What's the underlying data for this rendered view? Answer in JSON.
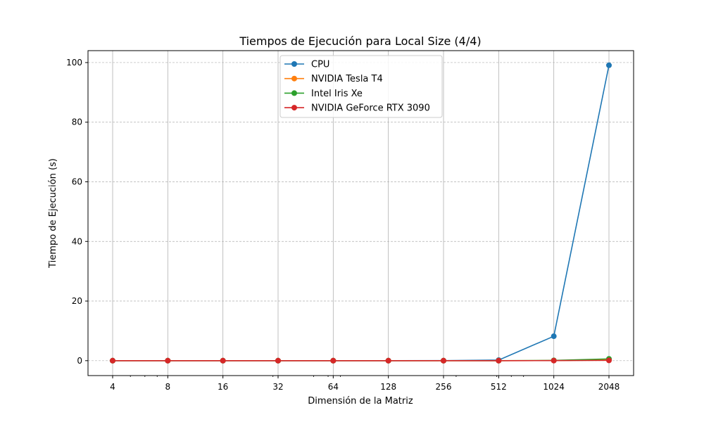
{
  "chart_data": {
    "type": "line",
    "title": "Tiempos de Ejecución para Local Size (4/4)",
    "xlabel": "Dimensión de la Matriz",
    "ylabel": "Tiempo de Ejecución (s)",
    "x_scale": "log2",
    "x": [
      4,
      8,
      16,
      32,
      64,
      128,
      256,
      512,
      1024,
      2048
    ],
    "x_tick_labels": [
      "4",
      "8",
      "16",
      "32",
      "64",
      "128",
      "256",
      "512",
      "1024",
      "2048"
    ],
    "y_ticks": [
      0,
      20,
      40,
      60,
      80,
      100
    ],
    "ylim": [
      -5,
      104
    ],
    "grid": true,
    "legend_position": "upper-center",
    "series": [
      {
        "name": "CPU",
        "color": "#1f77b4",
        "values": [
          0.0,
          0.0,
          0.0,
          0.0,
          0.0,
          0.0,
          0.02,
          0.2,
          8.2,
          99.1
        ]
      },
      {
        "name": "NVIDIA Tesla T4",
        "color": "#ff7f0e",
        "values": [
          0.0,
          0.0,
          0.0,
          0.0,
          0.0,
          0.0,
          0.0,
          0.0,
          0.05,
          0.3
        ]
      },
      {
        "name": "Intel Iris Xe",
        "color": "#2ca02c",
        "values": [
          0.0,
          0.0,
          0.0,
          0.0,
          0.0,
          0.0,
          0.0,
          0.0,
          0.1,
          0.6
        ]
      },
      {
        "name": "NVIDIA GeForce RTX 3090",
        "color": "#d62728",
        "values": [
          0.0,
          0.0,
          0.0,
          0.0,
          0.0,
          0.0,
          0.0,
          0.0,
          0.02,
          0.1
        ]
      }
    ]
  }
}
